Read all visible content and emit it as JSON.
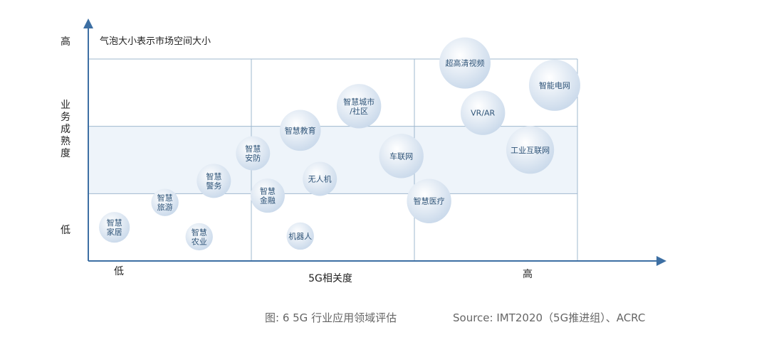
{
  "chart_data": {
    "type": "scatter",
    "subtype": "bubble",
    "annotation": "气泡大小表示市场空间大小",
    "xlabel": "5G相关度",
    "ylabel": "业务成熟度",
    "x_tick_labels": {
      "low": "低",
      "high": "高"
    },
    "y_tick_labels": {
      "low": "低",
      "high": "高"
    },
    "x_range": [
      0,
      3
    ],
    "y_range": [
      0,
      3
    ],
    "grid": true,
    "highlight_band_y": [
      1,
      2
    ],
    "colors": {
      "axis": "#3d6fa3",
      "grid": "#9fb8cf",
      "band": "#eef4fa",
      "bubble_light": "#ffffff",
      "bubble_dark": "#c8d8ea",
      "label": "#2f5478"
    },
    "points": [
      {
        "label": "智慧\n家居",
        "x": 0.16,
        "y": 0.5,
        "size": 0.9
      },
      {
        "label": "智慧\n旅游",
        "x": 0.47,
        "y": 0.87,
        "size": 0.8
      },
      {
        "label": "智慧\n农业",
        "x": 0.68,
        "y": 0.36,
        "size": 0.8
      },
      {
        "label": "智慧\n警务",
        "x": 0.77,
        "y": 1.19,
        "size": 1.0
      },
      {
        "label": "智慧\n安防",
        "x": 1.01,
        "y": 1.6,
        "size": 1.0
      },
      {
        "label": "智慧\n金融",
        "x": 1.1,
        "y": 0.97,
        "size": 1.0
      },
      {
        "label": "智慧教育",
        "x": 1.3,
        "y": 1.94,
        "size": 1.2
      },
      {
        "label": "无人机",
        "x": 1.42,
        "y": 1.22,
        "size": 1.0
      },
      {
        "label": "机器人",
        "x": 1.3,
        "y": 0.37,
        "size": 0.8
      },
      {
        "label": "智慧城市\n/社区",
        "x": 1.66,
        "y": 2.3,
        "size": 1.3
      },
      {
        "label": "车联网",
        "x": 1.92,
        "y": 1.56,
        "size": 1.3
      },
      {
        "label": "智慧医疗",
        "x": 2.09,
        "y": 0.89,
        "size": 1.3
      },
      {
        "label": "超高清视频",
        "x": 2.31,
        "y": 2.94,
        "size": 1.5
      },
      {
        "label": "VR/AR",
        "x": 2.42,
        "y": 2.2,
        "size": 1.3
      },
      {
        "label": "工业互联网",
        "x": 2.71,
        "y": 1.65,
        "size": 1.4
      },
      {
        "label": "智能电网",
        "x": 2.86,
        "y": 2.61,
        "size": 1.5
      }
    ]
  },
  "caption": {
    "figure": "图: 6  5G 行业应用领域评估",
    "source": "Source: IMT2020（5G推进组）、ACRC"
  }
}
